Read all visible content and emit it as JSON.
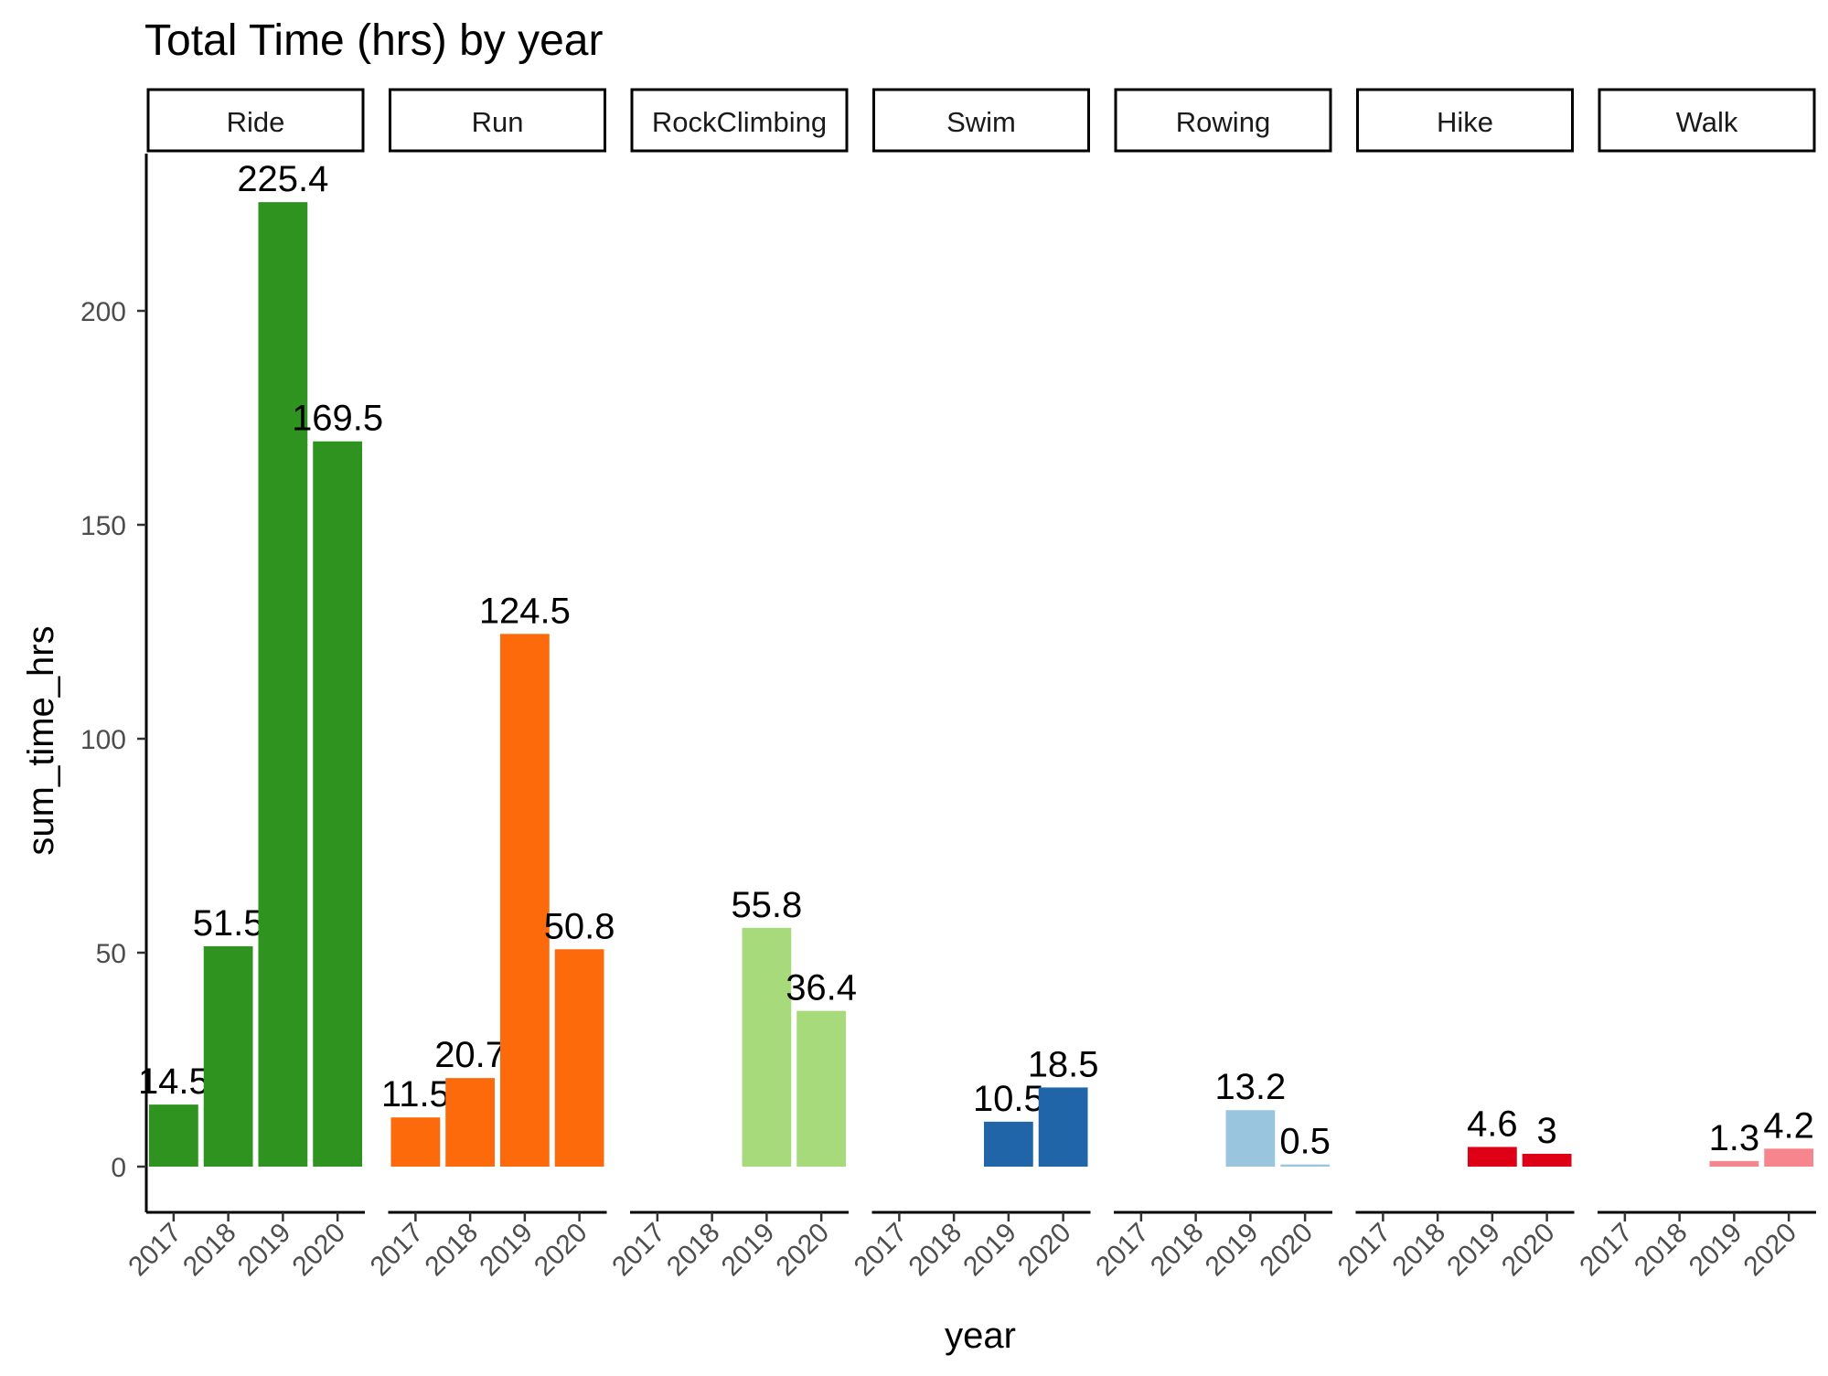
{
  "chart_data": {
    "type": "bar",
    "title": "Total Time (hrs) by year",
    "xlabel": "year",
    "ylabel": "sum_time_hrs",
    "ylim": [
      -11,
      237
    ],
    "yticks": [
      0,
      50,
      100,
      150,
      200
    ],
    "categories": [
      "2017",
      "2018",
      "2019",
      "2020"
    ],
    "legend": "none",
    "grid": false,
    "facets": [
      {
        "name": "Ride",
        "color": "#2E931F",
        "bars": [
          {
            "year": "2017",
            "value": 14.5,
            "label": "14.5"
          },
          {
            "year": "2018",
            "value": 51.5,
            "label": "51.5"
          },
          {
            "year": "2019",
            "value": 225.4,
            "label": "225.4"
          },
          {
            "year": "2020",
            "value": 169.5,
            "label": "169.5"
          }
        ]
      },
      {
        "name": "Run",
        "color": "#FD6A0B",
        "bars": [
          {
            "year": "2017",
            "value": 11.5,
            "label": "11.5"
          },
          {
            "year": "2018",
            "value": 20.7,
            "label": "20.7"
          },
          {
            "year": "2019",
            "value": 124.5,
            "label": "124.5"
          },
          {
            "year": "2020",
            "value": 50.8,
            "label": "50.8"
          }
        ]
      },
      {
        "name": "RockClimbing",
        "color": "#A6DA7B",
        "bars": [
          {
            "year": "2019",
            "value": 55.8,
            "label": "55.8"
          },
          {
            "year": "2020",
            "value": 36.4,
            "label": "36.4"
          }
        ]
      },
      {
        "name": "Swim",
        "color": "#1F65A8",
        "bars": [
          {
            "year": "2019",
            "value": 10.5,
            "label": "10.5"
          },
          {
            "year": "2020",
            "value": 18.5,
            "label": "18.5"
          }
        ]
      },
      {
        "name": "Rowing",
        "color": "#9AC5DF",
        "bars": [
          {
            "year": "2019",
            "value": 13.2,
            "label": "13.2"
          },
          {
            "year": "2020",
            "value": 0.5,
            "label": "0.5"
          }
        ]
      },
      {
        "name": "Hike",
        "color": "#DE0016",
        "bars": [
          {
            "year": "2019",
            "value": 4.6,
            "label": "4.6"
          },
          {
            "year": "2020",
            "value": 3,
            "label": "3"
          }
        ]
      },
      {
        "name": "Walk",
        "color": "#F7858D",
        "bars": [
          {
            "year": "2019",
            "value": 1.3,
            "label": "1.3"
          },
          {
            "year": "2020",
            "value": 4.2,
            "label": "4.2"
          }
        ]
      }
    ]
  }
}
